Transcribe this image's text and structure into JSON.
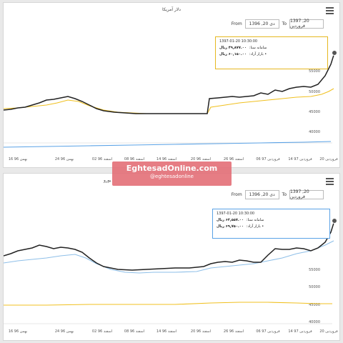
{
  "panels": [
    {
      "title": "دلار آمریکا",
      "range": {
        "from_label": "From",
        "from": "1396 ,20 دی",
        "to_label": "To",
        "to": "1397 ,20 فروردین"
      },
      "y_ticks": [
        "55000",
        "50000",
        "45000",
        "40000"
      ],
      "x_ticks": [
        "16 بهمن 96",
        "24 بهمن 96",
        "02 اسفند 96",
        "08 اسفند 96",
        "14 اسفند 96",
        "20 اسفند 96",
        "26 اسفند 96",
        "06 فروردین 97",
        "14 فروردین 97",
        "20 فروردین"
      ],
      "tooltip": {
        "time": "1397-01-20 10:30:00",
        "sana_label": "سامانه سنا:",
        "sana_value": "۴۹,۸۷۷.۰۰ ریال",
        "free_label": "• بازار آزاد:",
        "free_value": "۶۰,۱۵۰.۰۰ ریال",
        "border": "#e6b820"
      },
      "colors": {
        "free": "#222222",
        "sana": "#f0c020",
        "official": "#5aa2e6"
      }
    },
    {
      "title": "یورو",
      "range": {
        "from_label": "From",
        "from": "1396 ,20 دی",
        "to_label": "To",
        "to": "1397 ,20 فروردین"
      },
      "y_ticks": [
        "60000",
        "55000",
        "50000",
        "45000",
        "40000"
      ],
      "x_ticks": [
        "16 بهمن 96",
        "24 بهمن 96",
        "02 اسفند 96",
        "08 اسفند 96",
        "14 اسفند 96",
        "20 اسفند 96",
        "26 اسفند 96",
        "06 فروردین 97",
        "14 فروردین 97",
        "20 فروردین"
      ],
      "tooltip": {
        "time": "1397-01-20 10:30:00",
        "sana_label": "سامانه سنا:",
        "sana_value": "۶۳,۵۵۷.۰۰ ریال",
        "free_label": "• بازار آزاد:",
        "free_value": "۶۹,۷۵۰.۰۰ ریال",
        "border": "#5aa2e6"
      },
      "colors": {
        "free": "#222222",
        "sana": "#8ebfe8",
        "official": "#f0c020"
      }
    }
  ],
  "watermark": {
    "site": "EghtesadOnline.com",
    "handle": "@eghtesadonline"
  }
}
